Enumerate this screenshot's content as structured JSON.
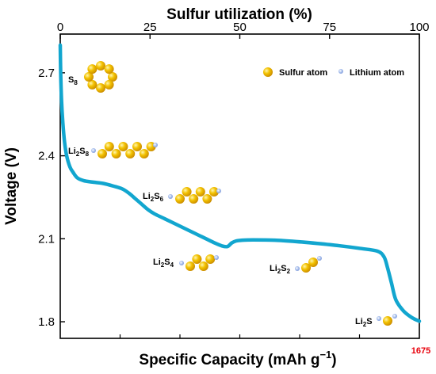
{
  "chart_data": {
    "type": "line",
    "xlabel_bottom": "Specific Capacity (mAh g",
    "xlabel_bottom_sup": "−1",
    "xlabel_bottom_close": ")",
    "xlabel_top": "Sulfur utilization (%)",
    "ylabel": "Voltage (V)",
    "bottom_tick_label": "1675",
    "xlim": [
      0,
      1675
    ],
    "top_xlim": [
      0,
      100
    ],
    "top_ticks": [
      "0",
      "25",
      "50",
      "75",
      "100"
    ],
    "ylim": [
      1.74,
      2.84
    ],
    "y_ticks": [
      "1.8",
      "2.1",
      "2.4",
      "2.7"
    ],
    "grid": false,
    "legend_position": "top-right",
    "legend": [
      {
        "label": "Sulfur atom",
        "type": "sulfur"
      },
      {
        "label": "Lithium atom",
        "type": "lithium"
      }
    ],
    "colors": {
      "curve": "#12a6cf",
      "sulfur": "#f3c200",
      "lithium": "#9fb8ea",
      "capacity_label": "#e8000b"
    },
    "series": [
      {
        "x": [
          0,
          2,
          6,
          12,
          20,
          30,
          45,
          60,
          80,
          110,
          150,
          200,
          250,
          290,
          320,
          350,
          380,
          410,
          440,
          480,
          520,
          560,
          600,
          640,
          680,
          720,
          755,
          780,
          800,
          820,
          850,
          900,
          1000,
          1100,
          1200,
          1300,
          1400,
          1480,
          1510,
          1525,
          1545,
          1565,
          1600,
          1640,
          1675
        ],
        "y": [
          2.8,
          2.7,
          2.6,
          2.52,
          2.45,
          2.4,
          2.36,
          2.34,
          2.32,
          2.31,
          2.305,
          2.3,
          2.29,
          2.28,
          2.265,
          2.245,
          2.225,
          2.205,
          2.19,
          2.175,
          2.16,
          2.145,
          2.13,
          2.115,
          2.1,
          2.085,
          2.074,
          2.072,
          2.085,
          2.092,
          2.095,
          2.096,
          2.095,
          2.09,
          2.083,
          2.075,
          2.065,
          2.055,
          2.035,
          2.0,
          1.94,
          1.88,
          1.84,
          1.815,
          1.802
        ]
      }
    ],
    "species": [
      {
        "main": "S",
        "sub": "8",
        "x": 40,
        "y": 2.675
      },
      {
        "main": "Li",
        "sub": "2",
        "main2": "S",
        "sub2": "8",
        "x": 40,
        "y": 2.415
      },
      {
        "main": "Li",
        "sub": "2",
        "main2": "S",
        "sub2": "6",
        "x": 385,
        "y": 2.25
      },
      {
        "main": "Li",
        "sub": "2",
        "main2": "S",
        "sub2": "4",
        "x": 435,
        "y": 2.015
      },
      {
        "main": "Li",
        "sub": "2",
        "main2": "S",
        "sub2": "2",
        "x": 970,
        "y": 1.99
      },
      {
        "main": "Li",
        "sub": "2",
        "main2": "S",
        "sub2": "",
        "x": 1385,
        "y": 1.805
      }
    ]
  }
}
